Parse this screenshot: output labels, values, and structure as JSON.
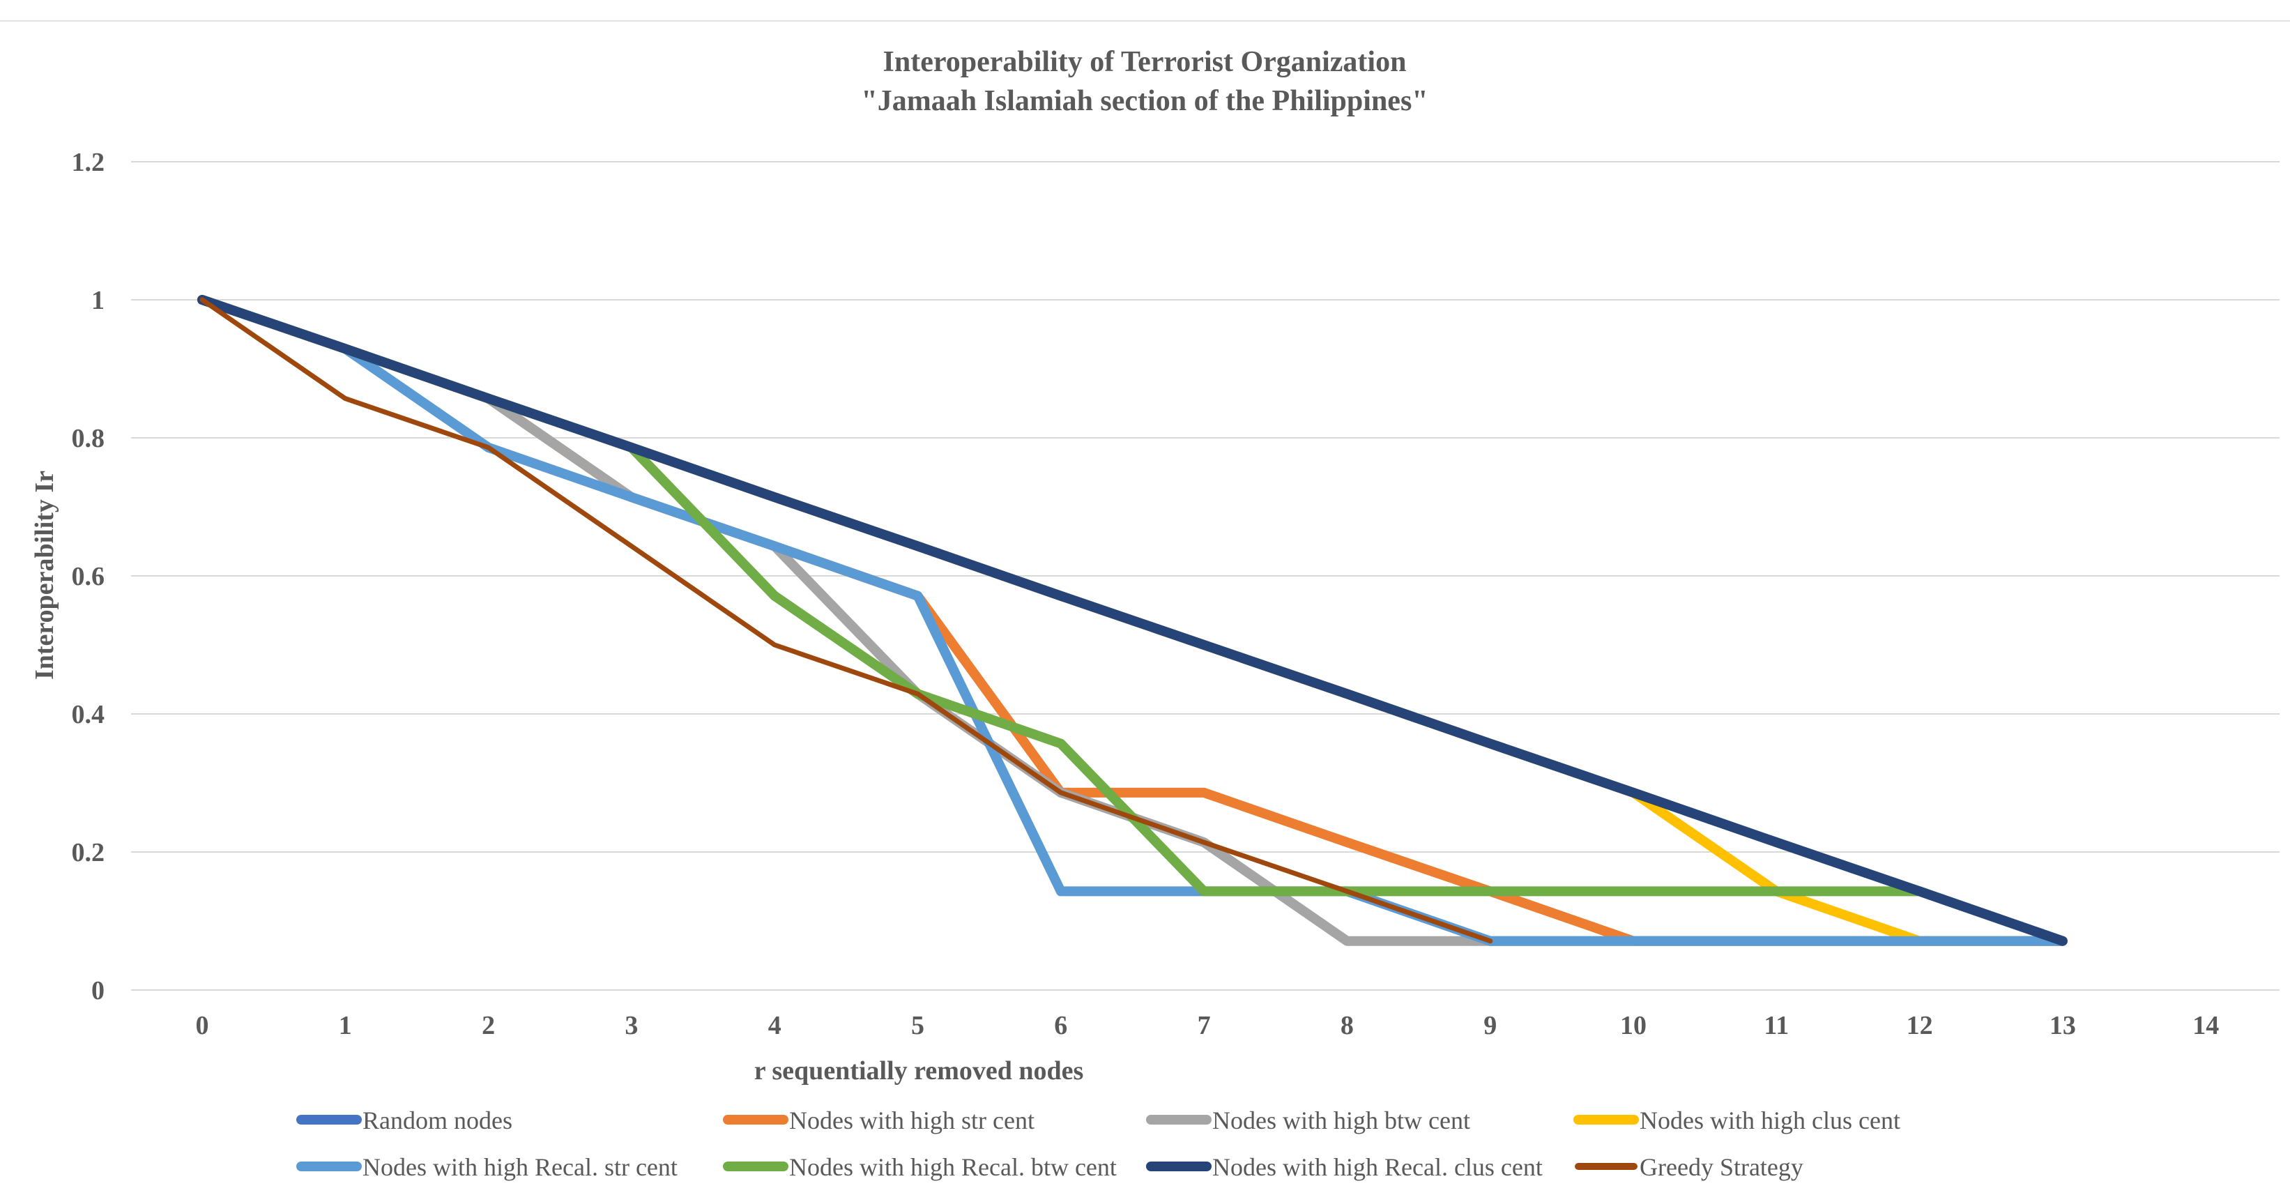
{
  "chart_data": {
    "type": "line",
    "title_line1": "Interoperability of Terrorist Organization",
    "title_line2": "\"Jamaah Islamiah section of the Philippines\"",
    "xlabel": "r sequentially removed nodes",
    "ylabel": "Interoperability Ir",
    "xlim": [
      0,
      14
    ],
    "ylim": [
      0,
      1.2
    ],
    "xticks": [
      0,
      1,
      2,
      3,
      4,
      5,
      6,
      7,
      8,
      9,
      10,
      11,
      12,
      13,
      14
    ],
    "yticks": [
      0,
      0.2,
      0.4,
      0.6,
      0.8,
      1,
      1.2
    ],
    "ytick_labels": [
      "0",
      "0.2",
      "0.4",
      "0.6",
      "0.8",
      "1",
      "1.2"
    ],
    "grid": true,
    "legend_position": "bottom",
    "series": [
      {
        "name": "Random nodes",
        "color": "#4472C4",
        "width": 14,
        "x": [
          0,
          1,
          2,
          3,
          4,
          5,
          6,
          7,
          8,
          9,
          10,
          11,
          12,
          13
        ],
        "y": [
          1,
          0.929,
          0.857,
          0.786,
          0.714,
          0.643,
          0.571,
          0.5,
          0.429,
          0.357,
          0.286,
          0.214,
          0.143,
          0.071
        ]
      },
      {
        "name": "Nodes with high str cent",
        "color": "#ED7D31",
        "width": 14,
        "x": [
          0,
          1,
          2,
          3,
          4,
          5,
          6,
          7,
          8,
          9,
          10,
          11,
          12,
          13
        ],
        "y": [
          1,
          0.929,
          0.857,
          0.714,
          0.643,
          0.571,
          0.286,
          0.286,
          0.214,
          0.143,
          0.071,
          0.071,
          0.071,
          0.071
        ]
      },
      {
        "name": "Nodes with high btw cent",
        "color": "#A5A5A5",
        "width": 14,
        "x": [
          0,
          1,
          2,
          3,
          4,
          5,
          6,
          7,
          8,
          9,
          10,
          11,
          12,
          13
        ],
        "y": [
          1,
          0.929,
          0.857,
          0.714,
          0.643,
          0.429,
          0.286,
          0.214,
          0.071,
          0.071,
          0.071,
          0.071,
          0.071,
          0.071
        ]
      },
      {
        "name": "Nodes with high clus cent",
        "color": "#FFC000",
        "width": 14,
        "x": [
          0,
          1,
          2,
          3,
          4,
          5,
          6,
          7,
          8,
          9,
          10,
          11,
          12,
          13
        ],
        "y": [
          1,
          0.929,
          0.857,
          0.786,
          0.714,
          0.643,
          0.571,
          0.5,
          0.429,
          0.357,
          0.286,
          0.143,
          0.071,
          0.071
        ]
      },
      {
        "name": "Nodes with high Recal. str cent",
        "color": "#5B9BD5",
        "width": 14,
        "x": [
          0,
          1,
          2,
          3,
          4,
          5,
          6,
          7,
          8,
          9,
          10,
          11,
          12,
          13
        ],
        "y": [
          1,
          0.929,
          0.786,
          0.714,
          0.643,
          0.571,
          0.143,
          0.143,
          0.143,
          0.071,
          0.071,
          0.071,
          0.071,
          0.071
        ]
      },
      {
        "name": "Nodes with high Recal. btw cent",
        "color": "#70AD47",
        "width": 14,
        "x": [
          0,
          1,
          2,
          3,
          4,
          5,
          6,
          7,
          8,
          9,
          10,
          11,
          12
        ],
        "y": [
          1,
          0.929,
          0.857,
          0.786,
          0.571,
          0.429,
          0.357,
          0.143,
          0.143,
          0.143,
          0.143,
          0.143,
          0.143
        ]
      },
      {
        "name": "Nodes with high Recal. clus cent",
        "color": "#264478",
        "width": 14,
        "x": [
          0,
          1,
          2,
          3,
          4,
          5,
          6,
          7,
          8,
          9,
          10,
          11,
          12,
          13
        ],
        "y": [
          1,
          0.929,
          0.857,
          0.786,
          0.714,
          0.643,
          0.571,
          0.5,
          0.429,
          0.357,
          0.286,
          0.214,
          0.143,
          0.071
        ]
      },
      {
        "name": "Greedy Strategy",
        "color": "#9E480E",
        "width": 7,
        "x": [
          0,
          1,
          2,
          3,
          4,
          5,
          6,
          7,
          8,
          9
        ],
        "y": [
          1,
          0.857,
          0.786,
          0.643,
          0.5,
          0.429,
          0.286,
          0.214,
          0.143,
          0.071
        ]
      }
    ]
  }
}
